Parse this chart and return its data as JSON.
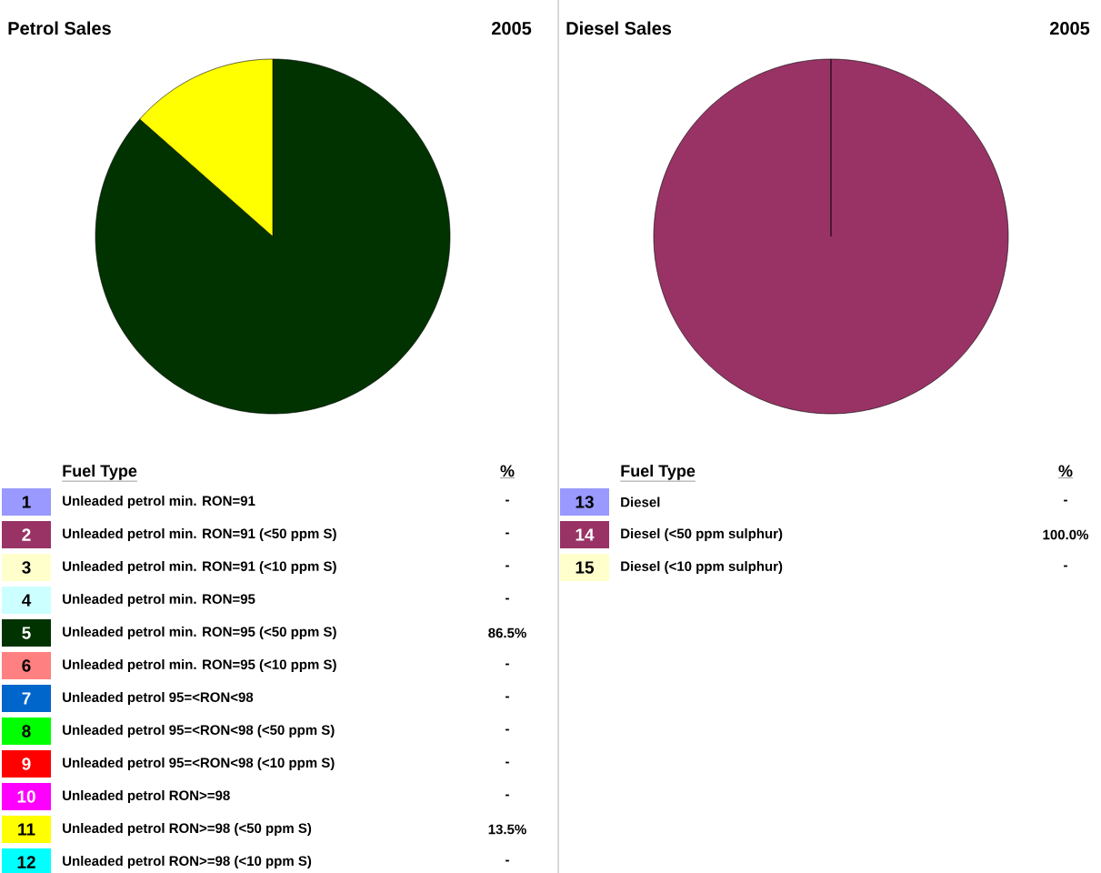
{
  "chart_data": [
    {
      "type": "pie",
      "title": "Petrol Sales",
      "subtitle": "2005",
      "legend_title": "Fuel Type",
      "legend": "bottom",
      "categories": [
        "Unleaded petrol min. RON=91",
        "Unleaded petrol min. RON=91 (<50 ppm S)",
        "Unleaded petrol min. RON=91 (<10 ppm S)",
        "Unleaded petrol min. RON=95",
        "Unleaded petrol min. RON=95 (<50 ppm S)",
        "Unleaded petrol min. RON=95 (<10 ppm S)",
        "Unleaded petrol 95=<RON<98",
        "Unleaded petrol 95=<RON<98 (<50 ppm S)",
        "Unleaded petrol 95=<RON<98 (<10 ppm S)",
        "Unleaded petrol RON>=98",
        "Unleaded petrol RON>=98 (<50 ppm S)",
        "Unleaded petrol RON>=98 (<10 ppm S)"
      ],
      "values": [
        0,
        0,
        0,
        0,
        86.5,
        0,
        0,
        0,
        0,
        0,
        13.5,
        0
      ],
      "value_labels": [
        "-",
        "-",
        "-",
        "-",
        "86.5%",
        "-",
        "-",
        "-",
        "-",
        "-",
        "13.5%",
        "-"
      ],
      "colors": [
        "#9999ff",
        "#993366",
        "#ffffcc",
        "#ccffff",
        "#003300",
        "#ff8080",
        "#0066cc",
        "#00ff00",
        "#ff0000",
        "#ff00ff",
        "#ffff00",
        "#00ffff"
      ],
      "annotations": [
        "%",
        "1",
        "2",
        "3",
        "4",
        "5",
        "6",
        "7",
        "8",
        "9",
        "10",
        "11",
        "12"
      ]
    },
    {
      "type": "pie",
      "title": "Diesel Sales",
      "subtitle": "2005",
      "legend_title": "Fuel Type",
      "legend": "bottom",
      "categories": [
        "Diesel",
        "Diesel (<50 ppm sulphur)",
        "Diesel (<10 ppm sulphur)"
      ],
      "values": [
        0,
        100,
        0
      ],
      "value_labels": [
        "-",
        "100.0%",
        "-"
      ],
      "colors": [
        "#9999ff",
        "#993366",
        "#ffffcc"
      ],
      "annotations": [
        "%",
        "13",
        "14",
        "15"
      ]
    }
  ]
}
